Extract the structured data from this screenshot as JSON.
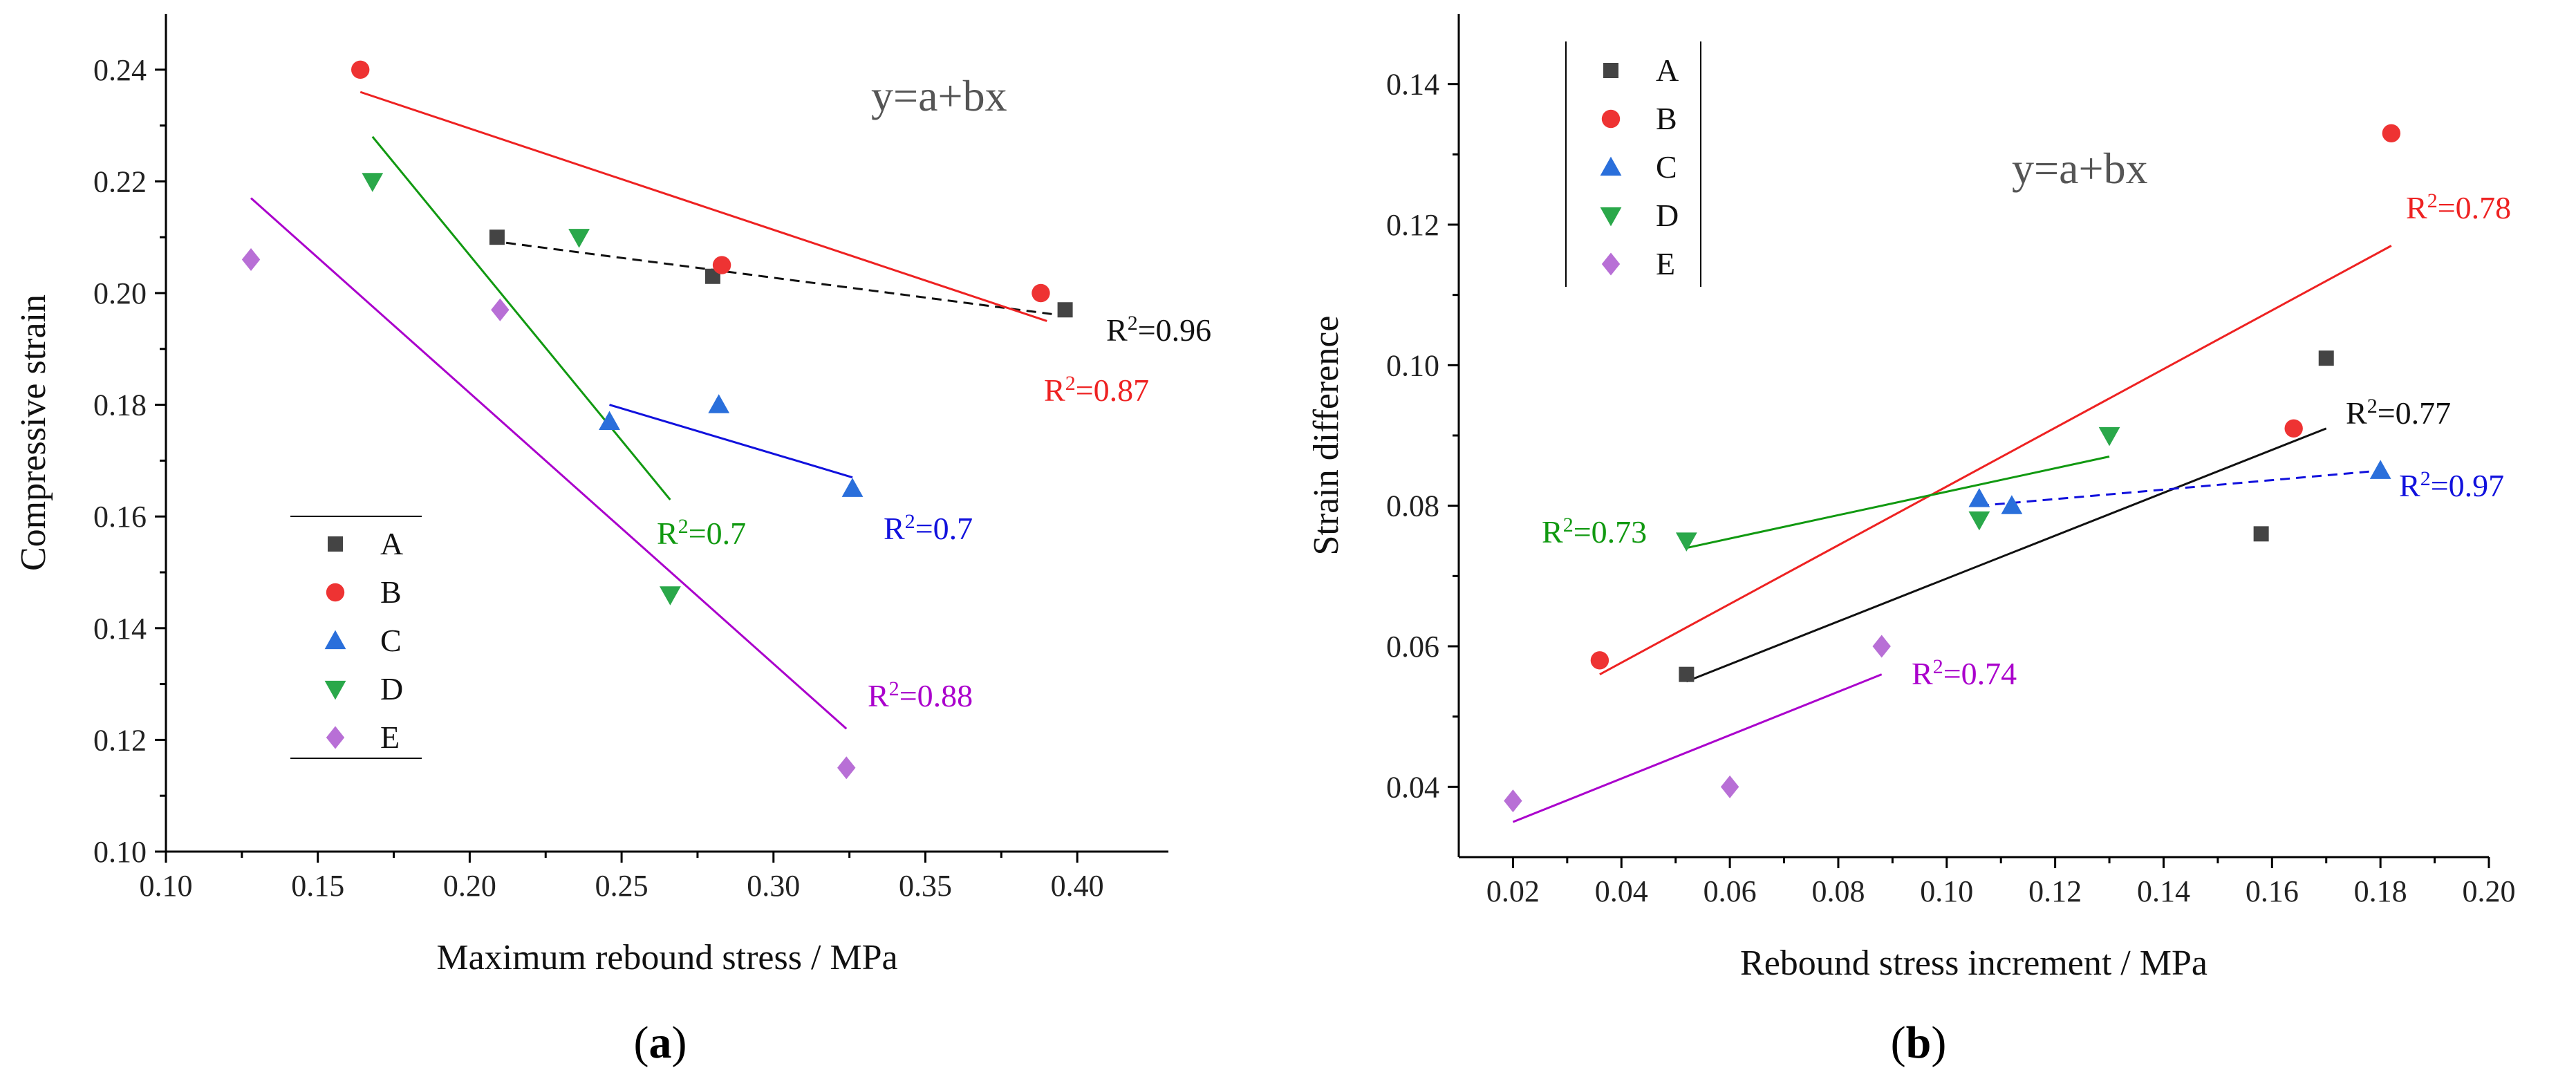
{
  "chart_data": [
    {
      "panel": "a",
      "type": "scatter",
      "xlabel": "Maximum rebound stress / MPa",
      "ylabel": "Compressive strain",
      "equation": "y=a+bx",
      "xlim": [
        0.1,
        0.43
      ],
      "ylim": [
        0.1,
        0.25
      ],
      "xticks": [
        "0.10",
        "0.15",
        "0.20",
        "0.25",
        "0.30",
        "0.35",
        "0.40"
      ],
      "yticks": [
        "0.10",
        "0.12",
        "0.14",
        "0.16",
        "0.18",
        "0.20",
        "0.22",
        "0.24"
      ],
      "legend": {
        "position": "lower-left",
        "entries": [
          "A",
          "B",
          "C",
          "D",
          "E"
        ]
      },
      "series": [
        {
          "name": "A",
          "color": "#444444",
          "marker": "square",
          "x": [
            0.209,
            0.28,
            0.396
          ],
          "y": [
            0.21,
            0.203,
            0.197
          ],
          "fit": {
            "x": [
              0.212,
              0.395
            ],
            "y": [
              0.209,
              0.196
            ],
            "dash": true,
            "label": "R²=0.96",
            "r2": "0.96"
          }
        },
        {
          "name": "B",
          "color": "#ee3333",
          "marker": "circle",
          "x": [
            0.164,
            0.283,
            0.388
          ],
          "y": [
            0.24,
            0.205,
            0.2
          ],
          "fit": {
            "x": [
              0.164,
              0.39
            ],
            "y": [
              0.236,
              0.195
            ],
            "dash": false,
            "label": "R²=0.87",
            "r2": "0.87"
          }
        },
        {
          "name": "C",
          "color": "#2a6fdb",
          "marker": "triangle-up",
          "x": [
            0.246,
            0.282,
            0.326
          ],
          "y": [
            0.177,
            0.18,
            0.165
          ],
          "fit": {
            "x": [
              0.246,
              0.326
            ],
            "y": [
              0.18,
              0.167
            ],
            "dash": false,
            "label": "R²=0.7",
            "r2": "0.7"
          }
        },
        {
          "name": "D",
          "color": "#2aa84a",
          "marker": "triangle-down",
          "x": [
            0.168,
            0.236,
            0.266
          ],
          "y": [
            0.22,
            0.21,
            0.146
          ],
          "fit": {
            "x": [
              0.168,
              0.266
            ],
            "y": [
              0.228,
              0.163
            ],
            "dash": false,
            "label": "R²=0.7",
            "r2": "0.7"
          }
        },
        {
          "name": "E",
          "color": "#b86fd6",
          "marker": "diamond",
          "x": [
            0.128,
            0.21,
            0.324
          ],
          "y": [
            0.206,
            0.197,
            0.115
          ],
          "fit": {
            "x": [
              0.128,
              0.324
            ],
            "y": [
              0.217,
              0.122
            ],
            "dash": false,
            "label": "R²=0.88",
            "r2": "0.88"
          }
        }
      ],
      "r2_colors": {
        "A": "#111111",
        "B": "#ee2222",
        "C": "#1111dd",
        "D": "#119911",
        "E": "#aa00cc"
      }
    },
    {
      "panel": "b",
      "type": "scatter",
      "xlabel": "Rebound stress increment / MPa",
      "ylabel": "Strain difference",
      "equation": "y=a+bx",
      "xlim": [
        0.01,
        0.2
      ],
      "ylim": [
        0.03,
        0.15
      ],
      "xticks": [
        "0.02",
        "0.04",
        "0.06",
        "0.08",
        "0.10",
        "0.12",
        "0.14",
        "0.16",
        "0.18",
        "0.20"
      ],
      "yticks": [
        "0.04",
        "0.06",
        "0.08",
        "0.10",
        "0.12",
        "0.14"
      ],
      "legend": {
        "position": "upper-left",
        "entries": [
          "A",
          "B",
          "C",
          "D",
          "E"
        ]
      },
      "series": [
        {
          "name": "A",
          "color": "#444444",
          "marker": "square",
          "x": [
            0.052,
            0.158,
            0.17
          ],
          "y": [
            0.056,
            0.076,
            0.101
          ],
          "fit": {
            "x": [
              0.052,
              0.17
            ],
            "y": [
              0.055,
              0.091
            ],
            "dash": false,
            "label": "R²=0.77",
            "r2": "0.77"
          }
        },
        {
          "name": "B",
          "color": "#ee3333",
          "marker": "circle",
          "x": [
            0.036,
            0.164,
            0.182
          ],
          "y": [
            0.058,
            0.091,
            0.133
          ],
          "fit": {
            "x": [
              0.036,
              0.182
            ],
            "y": [
              0.056,
              0.117
            ],
            "dash": false,
            "label": "R²=0.78",
            "r2": "0.78"
          }
        },
        {
          "name": "C",
          "color": "#2a6fdb",
          "marker": "triangle-up",
          "x": [
            0.106,
            0.112,
            0.18
          ],
          "y": [
            0.081,
            0.08,
            0.085
          ],
          "fit": {
            "x": [
              0.106,
              0.18
            ],
            "y": [
              0.08,
              0.085
            ],
            "dash": true,
            "label": "R²=0.97",
            "r2": "0.97"
          }
        },
        {
          "name": "D",
          "color": "#2aa84a",
          "marker": "triangle-down",
          "x": [
            0.052,
            0.106,
            0.13
          ],
          "y": [
            0.075,
            0.078,
            0.09
          ],
          "fit": {
            "x": [
              0.052,
              0.13
            ],
            "y": [
              0.074,
              0.087
            ],
            "dash": false,
            "label": "R²=0.73",
            "r2": "0.73"
          }
        },
        {
          "name": "E",
          "color": "#b86fd6",
          "marker": "diamond",
          "x": [
            0.02,
            0.06,
            0.088
          ],
          "y": [
            0.038,
            0.04,
            0.06
          ],
          "fit": {
            "x": [
              0.02,
              0.088
            ],
            "y": [
              0.035,
              0.056
            ],
            "dash": false,
            "label": "R²=0.74",
            "r2": "0.74"
          }
        }
      ],
      "r2_colors": {
        "A": "#111111",
        "B": "#ee2222",
        "C": "#1111dd",
        "D": "#119911",
        "E": "#aa00cc"
      }
    }
  ],
  "captions": {
    "a": "(a)",
    "b": "(b)"
  }
}
